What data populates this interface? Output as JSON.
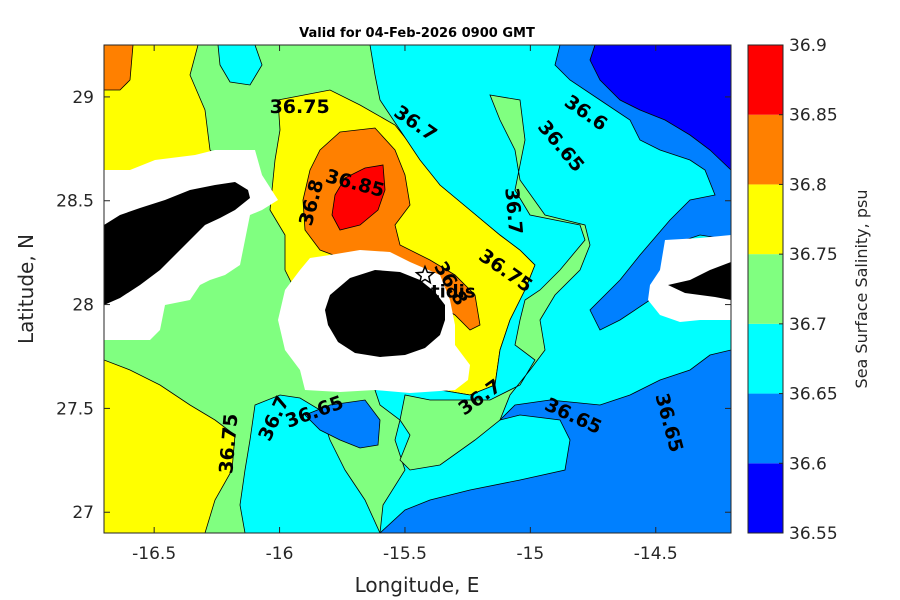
{
  "chart_data": {
    "type": "heatmap",
    "title": "Valid for 04-Feb-2026 0900 GMT",
    "xlabel": "Longitude, E",
    "ylabel": "Latitude, N",
    "xlim": [
      -16.7,
      -14.2
    ],
    "ylim": [
      26.9,
      29.25
    ],
    "xticks": [
      "-16.5",
      "-16",
      "-15.5",
      "-15",
      "-14.5"
    ],
    "xtick_values": [
      -16.5,
      -16,
      -15.5,
      -15,
      -14.5
    ],
    "yticks": [
      "27",
      "27.5",
      "28",
      "28.5",
      "29"
    ],
    "ytick_values": [
      27,
      27.5,
      28,
      28.5,
      29
    ],
    "colorbar": {
      "label": "Sea Surface Salinity, psu",
      "ticks": [
        "36.55",
        "36.6",
        "36.65",
        "36.7",
        "36.75",
        "36.8",
        "36.85",
        "36.9"
      ],
      "tick_values": [
        36.55,
        36.6,
        36.65,
        36.7,
        36.75,
        36.8,
        36.85,
        36.9
      ],
      "levels": [
        {
          "min": 36.55,
          "max": 36.6,
          "color": "#0000ff"
        },
        {
          "min": 36.6,
          "max": 36.65,
          "color": "#0080ff"
        },
        {
          "min": 36.65,
          "max": 36.7,
          "color": "#00ffff"
        },
        {
          "min": 36.7,
          "max": 36.75,
          "color": "#80ff80"
        },
        {
          "min": 36.75,
          "max": 36.8,
          "color": "#ffff00"
        },
        {
          "min": 36.8,
          "max": 36.85,
          "color": "#ff8000"
        },
        {
          "min": 36.85,
          "max": 36.9,
          "color": "#ff0000"
        }
      ]
    },
    "contour_labels": [
      {
        "text": "36.75",
        "lon": -15.92,
        "lat": 28.95,
        "angle": 0
      },
      {
        "text": "36.7",
        "lon": -15.46,
        "lat": 28.87,
        "angle": 35
      },
      {
        "text": "36.6",
        "lon": -14.78,
        "lat": 28.92,
        "angle": 35
      },
      {
        "text": "36.65",
        "lon": -14.88,
        "lat": 28.76,
        "angle": 50
      },
      {
        "text": "36.85",
        "lon": -15.7,
        "lat": 28.58,
        "angle": 15
      },
      {
        "text": "36.8",
        "lon": -15.87,
        "lat": 28.49,
        "angle": -75
      },
      {
        "text": "36.7",
        "lon": -15.07,
        "lat": 28.45,
        "angle": 85
      },
      {
        "text": "36.75",
        "lon": -15.1,
        "lat": 28.16,
        "angle": 35
      },
      {
        "text": "36.8",
        "lon": -15.32,
        "lat": 28.1,
        "angle": 60
      },
      {
        "text": "36.7",
        "lon": -15.2,
        "lat": 27.55,
        "angle": -35
      },
      {
        "text": "36.65",
        "lon": -15.86,
        "lat": 27.48,
        "angle": -20
      },
      {
        "text": "36.7",
        "lon": -16.02,
        "lat": 27.45,
        "angle": -65
      },
      {
        "text": "36.75",
        "lon": -16.2,
        "lat": 27.33,
        "angle": -85
      },
      {
        "text": "36.65",
        "lon": -14.83,
        "lat": 27.46,
        "angle": 25
      },
      {
        "text": "36.65",
        "lon": -14.45,
        "lat": 27.43,
        "angle": 75
      }
    ],
    "station": {
      "name": "tidis",
      "lon": -15.42,
      "lat": 28.14,
      "marker": "star"
    },
    "land_color": "#000000",
    "mask_color": "#ffffff"
  }
}
